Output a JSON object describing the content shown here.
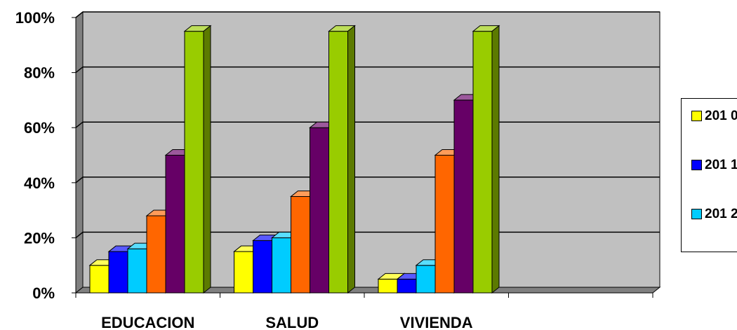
{
  "chart_data": {
    "type": "bar",
    "title": "",
    "xlabel": "",
    "ylabel": "",
    "categories": [
      "EDUCACION",
      "SALUD",
      "VIVIENDA",
      ""
    ],
    "y_ticks": [
      "0%",
      "20%",
      "40%",
      "60%",
      "80%",
      "100%"
    ],
    "ylim": [
      0,
      100
    ],
    "grid": true,
    "legend_position": "right",
    "series": [
      {
        "name": "2010",
        "color": "#ffff00",
        "values": [
          10,
          15,
          5,
          null
        ]
      },
      {
        "name": "2011",
        "color": "#0000ff",
        "values": [
          15,
          19,
          5,
          null
        ]
      },
      {
        "name": "2012",
        "color": "#00ccff",
        "values": [
          16,
          20,
          10,
          null
        ]
      },
      {
        "color": "#ff6600",
        "values": [
          28,
          35,
          50,
          null
        ]
      },
      {
        "color": "#660066",
        "values": [
          50,
          60,
          70,
          null
        ]
      },
      {
        "color": "#99cc00",
        "values": [
          95,
          95,
          95,
          null
        ]
      }
    ],
    "legend": [
      {
        "label": "201 0",
        "color": "#ffff00"
      },
      {
        "label": "201 1",
        "color": "#0000ff"
      },
      {
        "label": "201 2",
        "color": "#00ccff"
      }
    ]
  }
}
